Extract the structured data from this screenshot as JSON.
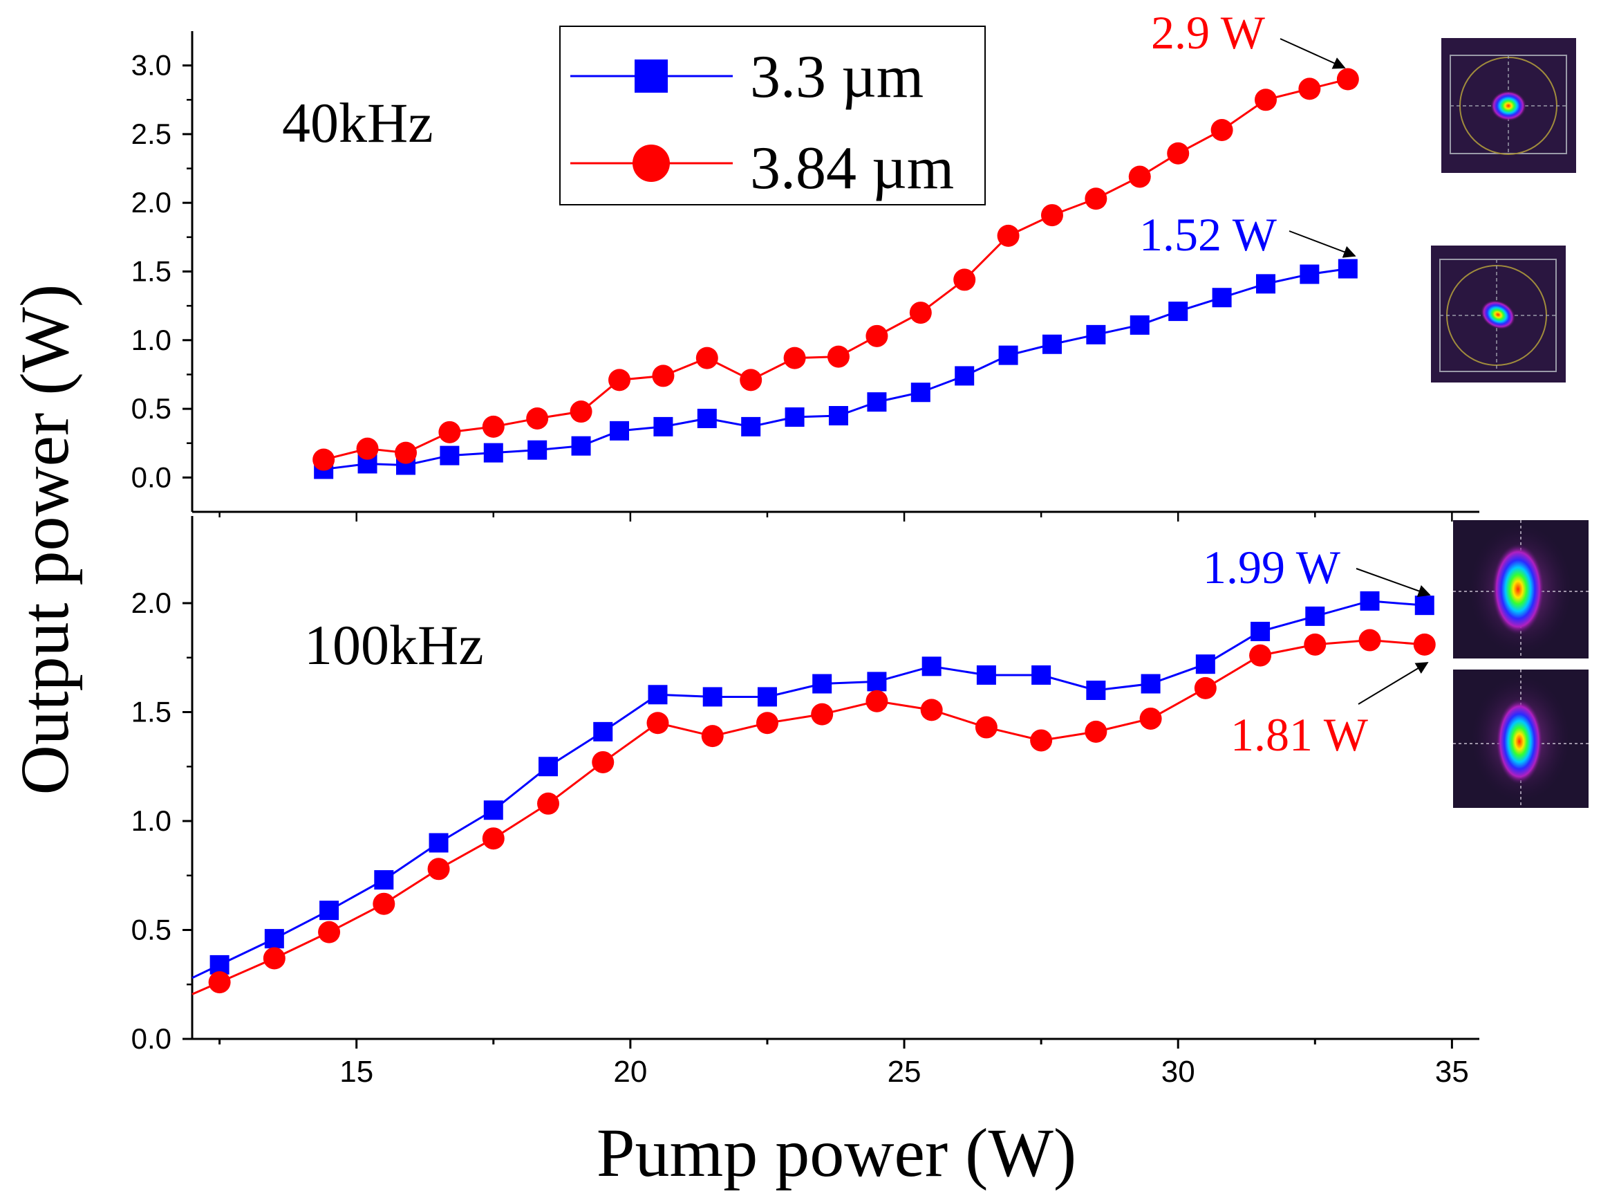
{
  "chart_data": [
    {
      "type": "line",
      "panel_label": "40kHz",
      "xlim": [
        12,
        35.5
      ],
      "ylim": [
        -0.25,
        3.25
      ],
      "yticks": [
        0.0,
        0.5,
        1.0,
        1.5,
        2.0,
        2.5,
        3.0
      ],
      "ytick_labels": [
        "0.0",
        "0.5",
        "1.0",
        "1.5",
        "2.0",
        "2.5",
        "3.0"
      ],
      "grid": false,
      "legend_position": "top-center",
      "series": [
        {
          "name": "3.3 µm",
          "color": "#0000ff",
          "marker": "square",
          "x": [
            14.4,
            15.2,
            15.9,
            16.7,
            17.5,
            18.3,
            19.1,
            19.8,
            20.6,
            21.4,
            22.2,
            23.0,
            23.8,
            24.5,
            25.3,
            26.1,
            26.9,
            27.7,
            28.5,
            29.3,
            30.0,
            30.8,
            31.6,
            32.4,
            33.1
          ],
          "y": [
            0.06,
            0.1,
            0.09,
            0.16,
            0.18,
            0.2,
            0.23,
            0.34,
            0.37,
            0.43,
            0.37,
            0.44,
            0.45,
            0.55,
            0.62,
            0.74,
            0.89,
            0.97,
            1.04,
            1.11,
            1.21,
            1.31,
            1.41,
            1.48,
            1.52
          ]
        },
        {
          "name": "3.84 µm",
          "color": "#ff0000",
          "marker": "circle",
          "x": [
            14.4,
            15.2,
            15.9,
            16.7,
            17.5,
            18.3,
            19.1,
            19.8,
            20.6,
            21.4,
            22.2,
            23.0,
            23.8,
            24.5,
            25.3,
            26.1,
            26.9,
            27.7,
            28.5,
            29.3,
            30.0,
            30.8,
            31.6,
            32.4,
            33.1
          ],
          "y": [
            0.13,
            0.21,
            0.18,
            0.33,
            0.37,
            0.43,
            0.48,
            0.71,
            0.74,
            0.87,
            0.71,
            0.87,
            0.88,
            1.03,
            1.2,
            1.44,
            1.76,
            1.91,
            2.03,
            2.19,
            2.36,
            2.53,
            2.75,
            2.83,
            2.9
          ]
        }
      ],
      "annotations": [
        {
          "text": "2.9 W",
          "color": "#ff0000",
          "points_to": [
            33.1,
            2.9
          ]
        },
        {
          "text": "1.52 W",
          "color": "#0000ff",
          "points_to": [
            33.1,
            1.52
          ]
        }
      ]
    },
    {
      "type": "line",
      "panel_label": "100kHz",
      "xlabel": "Pump power (W)",
      "ylabel": "Output power (W)",
      "xlim": [
        12,
        35.5
      ],
      "ylim": [
        0.0,
        2.4
      ],
      "xticks": [
        15,
        20,
        25,
        30,
        35
      ],
      "xtick_labels": [
        "15",
        "20",
        "25",
        "30",
        "35"
      ],
      "yticks": [
        0.0,
        0.5,
        1.0,
        1.5,
        2.0
      ],
      "ytick_labels": [
        "0.0",
        "0.5",
        "1.0",
        "1.5",
        "2.0"
      ],
      "grid": false,
      "series": [
        {
          "name": "3.3 µm",
          "color": "#0000ff",
          "marker": "square",
          "x": [
            12.5,
            13.5,
            14.5,
            15.5,
            16.5,
            17.5,
            18.5,
            19.5,
            20.5,
            21.5,
            22.5,
            23.5,
            24.5,
            25.5,
            26.5,
            27.5,
            28.5,
            29.5,
            30.5,
            31.5,
            32.5,
            33.5,
            34.5
          ],
          "y": [
            0.34,
            0.46,
            0.59,
            0.73,
            0.9,
            1.05,
            1.25,
            1.41,
            1.58,
            1.57,
            1.57,
            1.63,
            1.64,
            1.71,
            1.67,
            1.67,
            1.6,
            1.63,
            1.72,
            1.87,
            1.94,
            2.01,
            1.99
          ]
        },
        {
          "name": "3.84 µm",
          "color": "#ff0000",
          "marker": "circle",
          "x": [
            12.5,
            13.5,
            14.5,
            15.5,
            16.5,
            17.5,
            18.5,
            19.5,
            20.5,
            21.5,
            22.5,
            23.5,
            24.5,
            25.5,
            26.5,
            27.5,
            28.5,
            29.5,
            30.5,
            31.5,
            32.5,
            33.5,
            34.5
          ],
          "y": [
            0.26,
            0.37,
            0.49,
            0.62,
            0.78,
            0.92,
            1.08,
            1.27,
            1.45,
            1.39,
            1.45,
            1.49,
            1.55,
            1.51,
            1.43,
            1.37,
            1.41,
            1.47,
            1.61,
            1.76,
            1.81,
            1.83,
            1.81
          ]
        }
      ],
      "annotations": [
        {
          "text": "1.99 W",
          "color": "#0000ff",
          "points_to": [
            34.5,
            1.99
          ]
        },
        {
          "text": "1.81 W",
          "color": "#ff0000",
          "points_to": [
            34.5,
            1.81
          ]
        }
      ]
    }
  ],
  "legend": [
    {
      "label": "3.3 µm",
      "color": "#0000ff",
      "marker": "square"
    },
    {
      "label": "3.84 µm",
      "color": "#ff0000",
      "marker": "circle"
    }
  ],
  "insets": [
    {
      "name": "beam-profile-40khz-3.84um",
      "style": "circle-box"
    },
    {
      "name": "beam-profile-40khz-3.3um",
      "style": "circle-box"
    },
    {
      "name": "beam-profile-100khz-3.3um",
      "style": "elongated"
    },
    {
      "name": "beam-profile-100khz-3.84um",
      "style": "elongated"
    }
  ],
  "colors": {
    "blue_series": "#0000ff",
    "red_series": "#ff0000",
    "axis": "#000000"
  }
}
